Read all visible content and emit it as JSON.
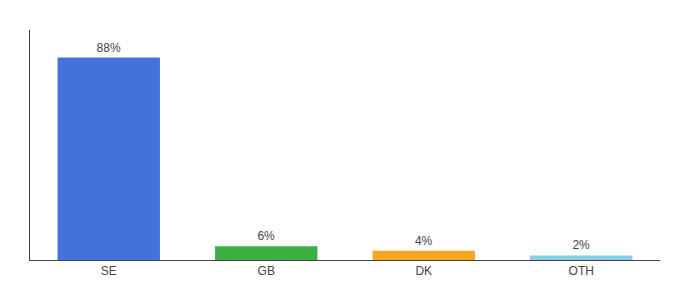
{
  "chart_data": {
    "type": "bar",
    "categories": [
      "SE",
      "GB",
      "DK",
      "OTH"
    ],
    "values": [
      88,
      6,
      4,
      2
    ],
    "value_labels": [
      "88%",
      "6%",
      "4%",
      "2%"
    ],
    "colors": [
      "#4472db",
      "#3cb043",
      "#f5a623",
      "#87ceeb"
    ],
    "ylim": [
      0,
      100
    ],
    "data_labels": true,
    "tick_labels": "x",
    "grid": false
  }
}
